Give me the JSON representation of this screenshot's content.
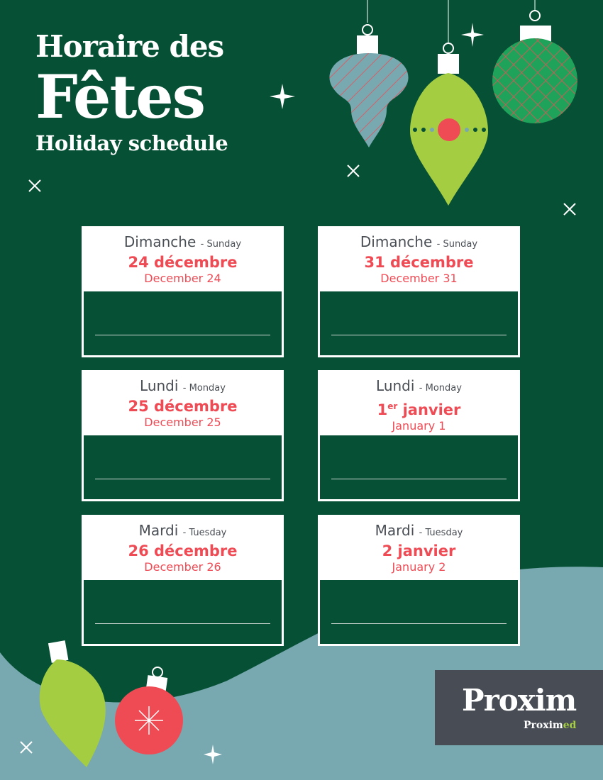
{
  "colors": {
    "background": "#065035",
    "accent_red": "#ef4b55",
    "lime": "#a5cd42",
    "teal": "#78a9b0",
    "logo_bg": "#474c55"
  },
  "header": {
    "line1": "Horaire des",
    "line2": "Fêtes",
    "line3": "Holiday schedule"
  },
  "cards": [
    {
      "day_fr": "Dimanche",
      "day_en": "- Sunday",
      "date_fr": "24 décembre",
      "date_en": "December 24"
    },
    {
      "day_fr": "Dimanche",
      "day_en": "- Sunday",
      "date_fr": "31 décembre",
      "date_en": "December 31"
    },
    {
      "day_fr": "Lundi",
      "day_en": "- Monday",
      "date_fr": "25 décembre",
      "date_en": "December 25"
    },
    {
      "day_fr": "Lundi",
      "day_en": "- Monday",
      "date_fr": "1",
      "date_fr_sup": "er",
      "date_fr_rest": " janvier",
      "date_en": "January 1"
    },
    {
      "day_fr": "Mardi",
      "day_en": "- Tuesday",
      "date_fr": "26 décembre",
      "date_en": "December 26"
    },
    {
      "day_fr": "Mardi",
      "day_en": "- Tuesday",
      "date_fr": "2 janvier",
      "date_en": "January 2"
    }
  ],
  "logo": {
    "main": "Proxim",
    "sub_a": "Proxim",
    "sub_b": "ed"
  }
}
